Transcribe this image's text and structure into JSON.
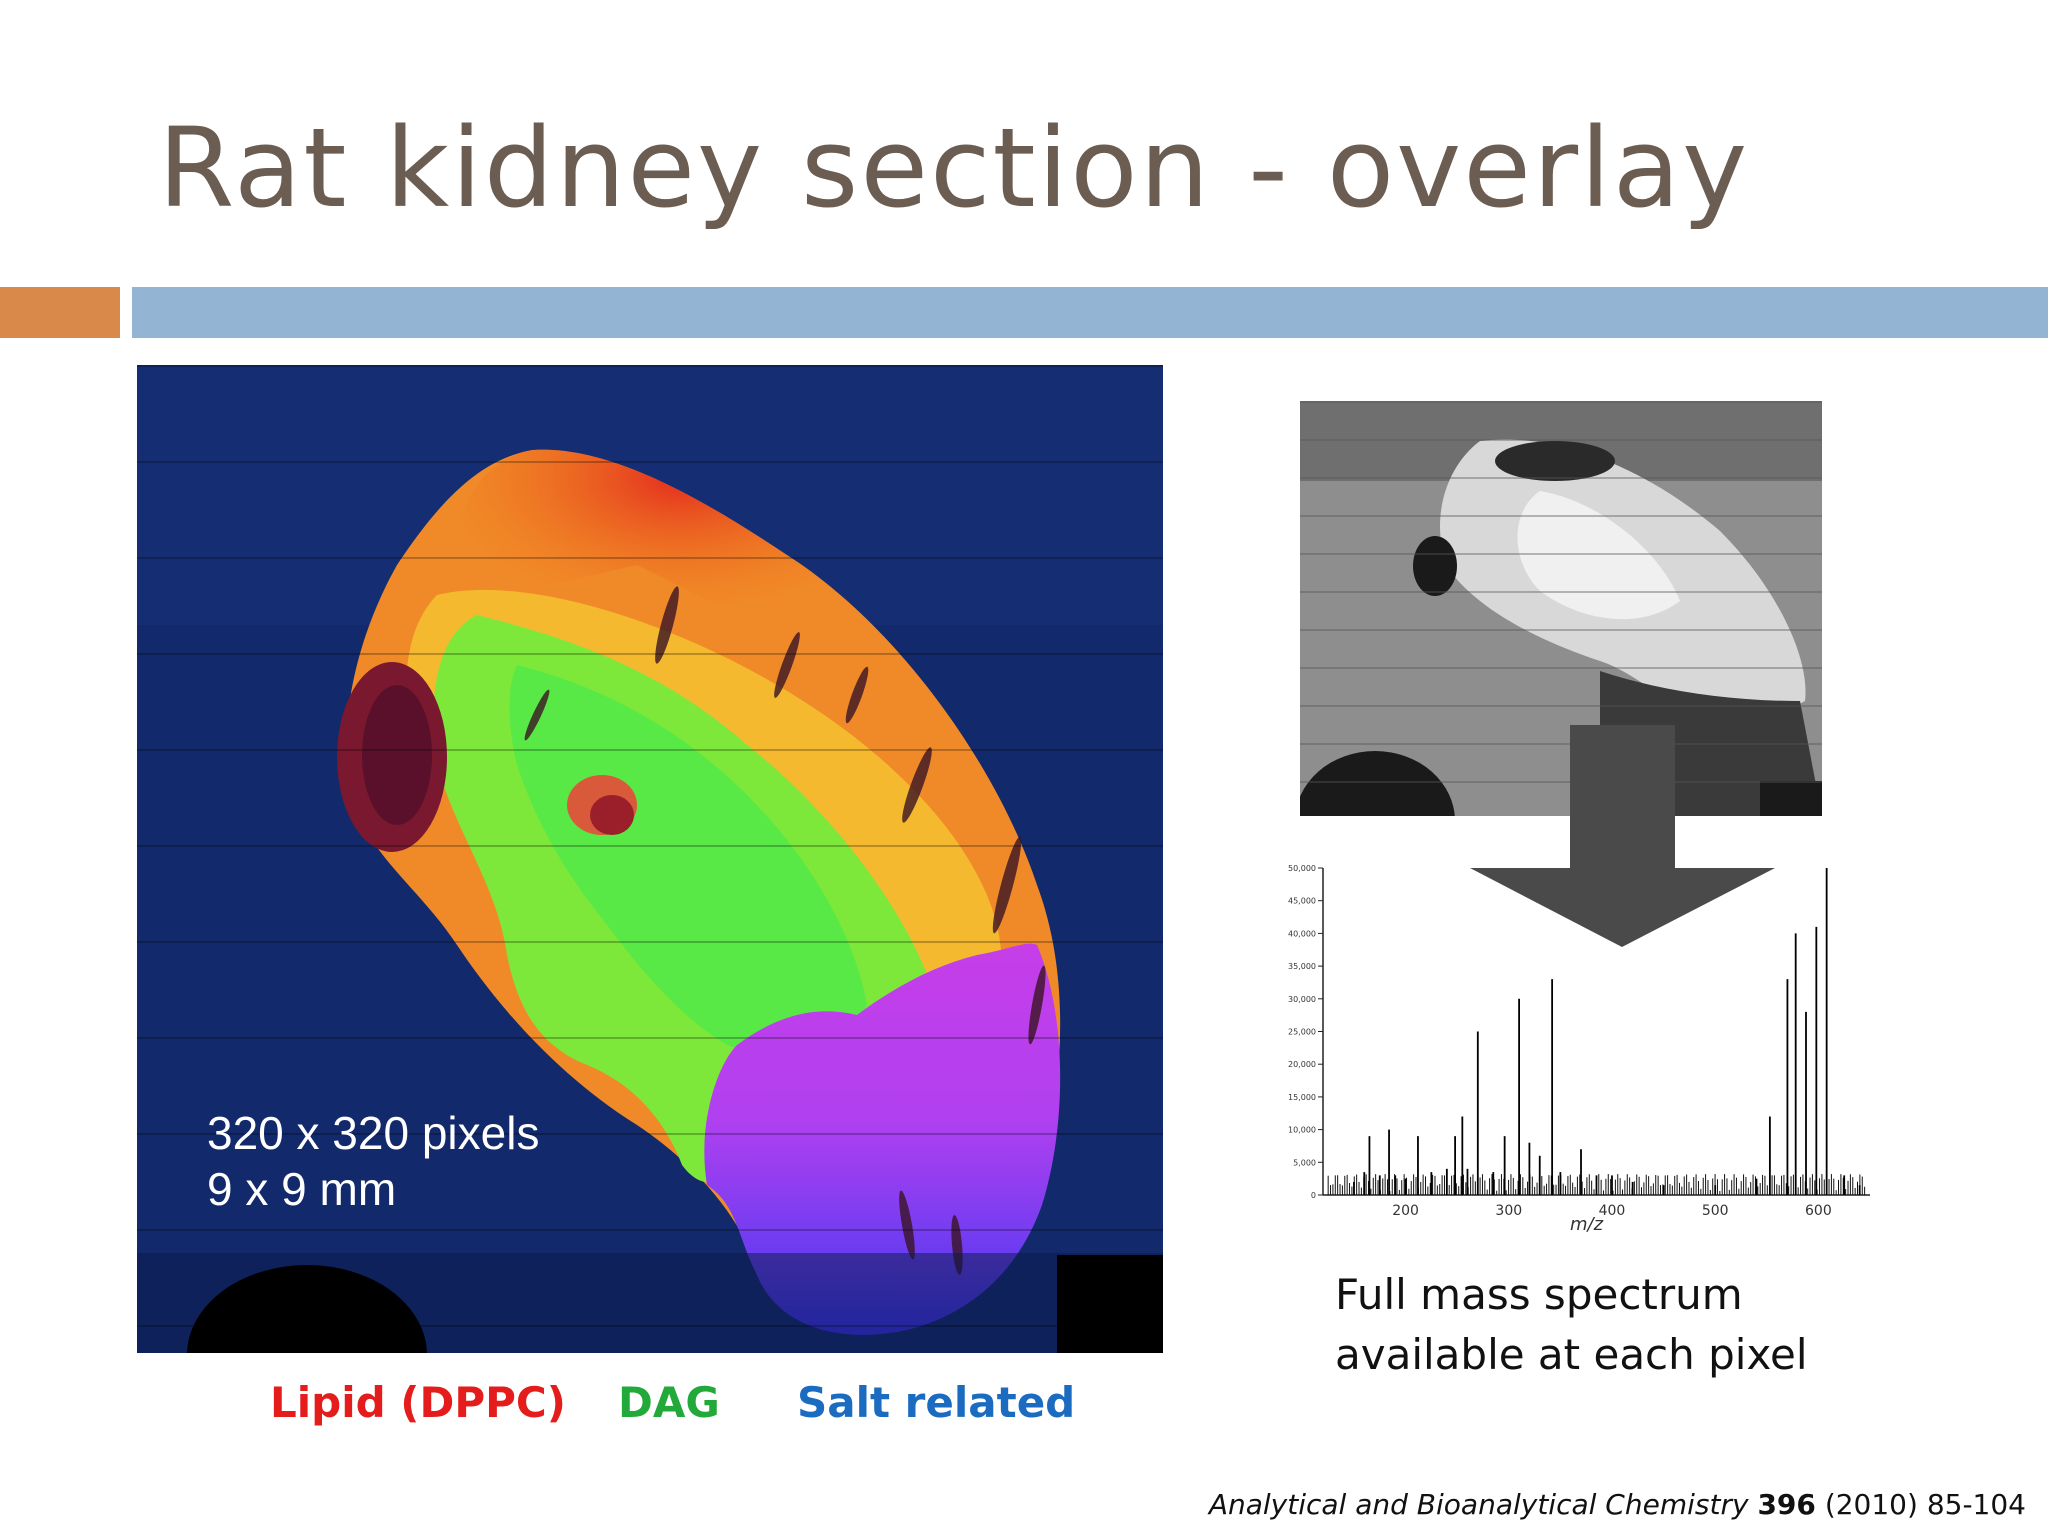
{
  "slide": {
    "title": "Rat kidney section - overlay",
    "accent_orange": "#d98a4b",
    "accent_blue": "#93b4d2"
  },
  "overlay": {
    "pixels_label": "320 x 320 pixels",
    "size_label": "9 x 9 mm"
  },
  "legend": {
    "lipid": "Lipid (DPPC)",
    "dag": "DAG",
    "salt": "Salt related",
    "lipid_color": "#e41c1c",
    "dag_color": "#22a93a",
    "salt_color": "#1b6cc0"
  },
  "spectrum": {
    "y_ticks": [
      "50,000",
      "45,000",
      "40,000",
      "35,000",
      "30,000",
      "25,000",
      "20,000",
      "15,000",
      "10,000",
      "5,000",
      "0"
    ],
    "x_ticks": [
      "200",
      "300",
      "400",
      "500",
      "600"
    ],
    "x_label": "m/z",
    "peaks": [
      [
        150,
        2000
      ],
      [
        160,
        3500
      ],
      [
        165,
        9000
      ],
      [
        175,
        3000
      ],
      [
        184,
        10000
      ],
      [
        190,
        3000
      ],
      [
        200,
        2500
      ],
      [
        212,
        9000
      ],
      [
        225,
        3500
      ],
      [
        240,
        4000
      ],
      [
        248,
        9000
      ],
      [
        255,
        12000
      ],
      [
        260,
        4000
      ],
      [
        270,
        25000
      ],
      [
        285,
        3500
      ],
      [
        296,
        9000
      ],
      [
        310,
        30000
      ],
      [
        320,
        8000
      ],
      [
        330,
        6000
      ],
      [
        342,
        33000
      ],
      [
        350,
        3500
      ],
      [
        370,
        7000
      ],
      [
        385,
        3000
      ],
      [
        400,
        3000
      ],
      [
        420,
        2000
      ],
      [
        450,
        1500
      ],
      [
        500,
        1500
      ],
      [
        540,
        2500
      ],
      [
        553,
        12000
      ],
      [
        570,
        33000
      ],
      [
        578,
        40000
      ],
      [
        588,
        28000
      ],
      [
        598,
        41000
      ],
      [
        608,
        50000
      ],
      [
        625,
        3000
      ],
      [
        640,
        1500
      ]
    ]
  },
  "caption": {
    "line1": "Full mass spectrum",
    "line2": "available at each pixel"
  },
  "citation": {
    "journal": "Analytical and Bioanalytical Chemistry",
    "volume": "396",
    "rest": "(2010) 85-104"
  }
}
